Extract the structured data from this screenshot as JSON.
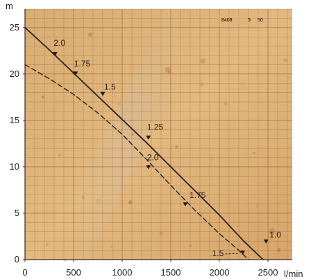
{
  "chart_data": {
    "type": "line",
    "xlabel": "l/min",
    "ylabel": "m",
    "xlim": [
      0,
      2750
    ],
    "ylim": [
      0,
      27
    ],
    "x_ticks": [
      0,
      500,
      1000,
      1500,
      2000,
      2500
    ],
    "y_ticks": [
      0,
      5,
      10,
      15,
      20,
      25
    ],
    "x_tick_labels": [
      "0",
      "500",
      "1000",
      "1500",
      "2000",
      "2500"
    ],
    "y_tick_labels": [
      "0",
      "5",
      "10",
      "15",
      "20",
      "25"
    ],
    "grid": true,
    "chart_code": [
      "8408",
      "5",
      "50"
    ],
    "series": [
      {
        "style": "solid",
        "color": "#2b2219",
        "x": [
          0,
          250,
          500,
          750,
          1000,
          1250,
          1500,
          1750,
          2000,
          2250,
          2450
        ],
        "y": [
          25,
          22.6,
          20.1,
          17.6,
          15.1,
          12.6,
          10.0,
          7.4,
          4.8,
          2.0,
          0
        ],
        "markers": [
          {
            "x": 310,
            "y": 22.0,
            "label": "2.0"
          },
          {
            "x": 520,
            "y": 19.9,
            "label": "1.75"
          },
          {
            "x": 800,
            "y": 17.7,
            "label": "1.5"
          },
          {
            "x": 1270,
            "y": 13.0,
            "label": "1.25"
          },
          {
            "x": 2480,
            "y": 1.8,
            "label": "1.0"
          }
        ]
      },
      {
        "style": "dashed",
        "color": "#2b2219",
        "x": [
          0,
          250,
          500,
          750,
          1000,
          1250,
          1500,
          1750,
          2000,
          2200,
          2300
        ],
        "y": [
          21,
          19.5,
          17.8,
          15.8,
          13.5,
          10.8,
          8.0,
          5.3,
          2.8,
          1.0,
          0
        ],
        "markers": [
          {
            "x": 1270,
            "y": 9.8,
            "label": "2.0"
          },
          {
            "x": 1650,
            "y": 5.8,
            "label": "1.75"
          },
          {
            "x": 2240,
            "y": 0.6,
            "label": "1.5"
          }
        ]
      }
    ]
  }
}
